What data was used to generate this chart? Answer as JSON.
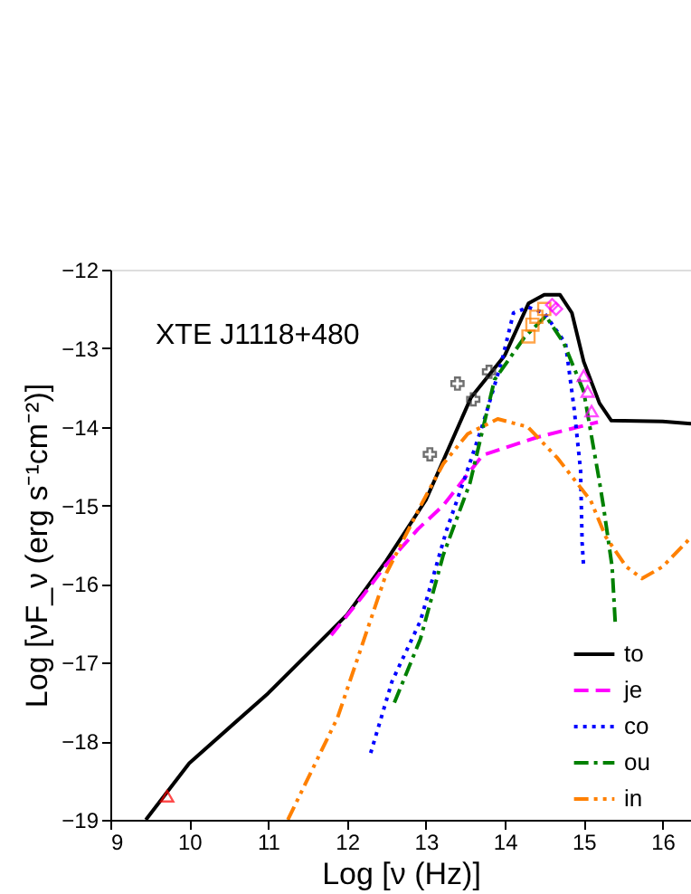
{
  "chart_data": {
    "type": "line",
    "xlabel": "Log [ν (Hz)]",
    "ylabel": "Log [νF_ν (erg s⁻¹cm⁻²)]",
    "annotations": [
      "XTE J1118+480"
    ],
    "xlim": [
      9,
      16.36
    ],
    "ylim": [
      -19,
      -12
    ],
    "xticks": [
      9,
      10,
      11,
      12,
      13,
      14,
      15,
      16
    ],
    "yticks": [
      -19,
      -18,
      -17,
      -16,
      -15,
      -14,
      -13,
      -12
    ],
    "grid": false,
    "legend": "bottom right",
    "series": [
      {
        "name": "to",
        "color": "#000000",
        "line_style": "solid",
        "x": [
          9.45,
          10,
          11,
          12,
          12.5,
          13,
          13.57,
          14,
          14.3,
          14.5,
          14.7,
          14.85,
          15,
          15.2,
          15.35,
          16,
          16.36
        ],
        "values": [
          -19,
          -18.28,
          -17.39,
          -16.39,
          -15.7,
          -14.93,
          -13.63,
          -13.09,
          -12.43,
          -12.32,
          -12.32,
          -12.55,
          -13.17,
          -13.7,
          -13.92,
          -13.93,
          -13.96
        ]
      },
      {
        "name": "je",
        "color": "#ff00ff",
        "line_style": "dashed",
        "x": [
          11.8,
          12.2,
          12.5,
          12.9,
          13.22,
          13.72,
          14.42,
          15.18
        ],
        "values": [
          -16.65,
          -16.15,
          -15.75,
          -15.3,
          -15.0,
          -14.36,
          -14.13,
          -13.94
        ]
      },
      {
        "name": "co",
        "color": "#0000ff",
        "line_style": "dotted",
        "x": [
          12.3,
          12.57,
          12.93,
          13.26,
          13.5,
          13.73,
          13.96,
          14.11,
          14.3,
          14.5,
          14.77,
          14.88,
          14.96,
          14.98,
          15.0
        ],
        "values": [
          -18.15,
          -17.24,
          -16.47,
          -15.32,
          -14.63,
          -13.94,
          -13.17,
          -12.55,
          -12.48,
          -12.55,
          -12.94,
          -13.78,
          -14.55,
          -15.47,
          -15.8
        ]
      },
      {
        "name": "ou",
        "color": "#008000",
        "line_style": "dashdot",
        "x": [
          12.6,
          12.93,
          13.22,
          13.56,
          13.87,
          14.25,
          14.52,
          14.75,
          15.0,
          15.2,
          15.25,
          15.36,
          15.4
        ],
        "values": [
          -17.51,
          -16.7,
          -15.63,
          -14.71,
          -13.4,
          -12.86,
          -12.59,
          -12.94,
          -13.55,
          -14.7,
          -15.01,
          -15.78,
          -16.5
        ]
      },
      {
        "name": "in",
        "color": "#ff8000",
        "line_style": "dashdotdot",
        "x": [
          11.25,
          11.88,
          12.5,
          12.93,
          13.22,
          13.53,
          13.91,
          14.29,
          14.67,
          15.09,
          15.28,
          15.54,
          15.74,
          16.0,
          16.3,
          16.36
        ],
        "values": [
          -19,
          -17.7,
          -15.86,
          -15.01,
          -14.47,
          -14.09,
          -13.9,
          -14.0,
          -14.4,
          -14.94,
          -15.4,
          -15.78,
          -15.93,
          -15.78,
          -15.47,
          -15.4
        ]
      },
      {
        "type": "scatter",
        "marker": "triangle",
        "color": "#ff0000",
        "x": [
          9.72
        ],
        "values": [
          -18.7
        ]
      },
      {
        "type": "scatter",
        "marker": "cross",
        "color": "#333333",
        "x": [
          13.05,
          13.4,
          13.6,
          13.8
        ],
        "values": [
          -14.35,
          -13.45,
          -13.65,
          -13.3
        ]
      },
      {
        "type": "scatter",
        "marker": "square",
        "color": "#ff8000",
        "x": [
          14.3,
          14.35,
          14.4,
          14.5
        ],
        "values": [
          -12.85,
          -12.7,
          -12.6,
          -12.5
        ]
      },
      {
        "type": "scatter",
        "marker": "diamond",
        "color": "#ff00ff",
        "x": [
          14.6,
          14.65
        ],
        "values": [
          -12.45,
          -12.5
        ]
      },
      {
        "type": "scatter",
        "marker": "triangle",
        "color": "#ff00ff",
        "x": [
          15.0,
          15.05,
          15.1
        ],
        "values": [
          -13.35,
          -13.55,
          -13.8
        ]
      }
    ]
  }
}
